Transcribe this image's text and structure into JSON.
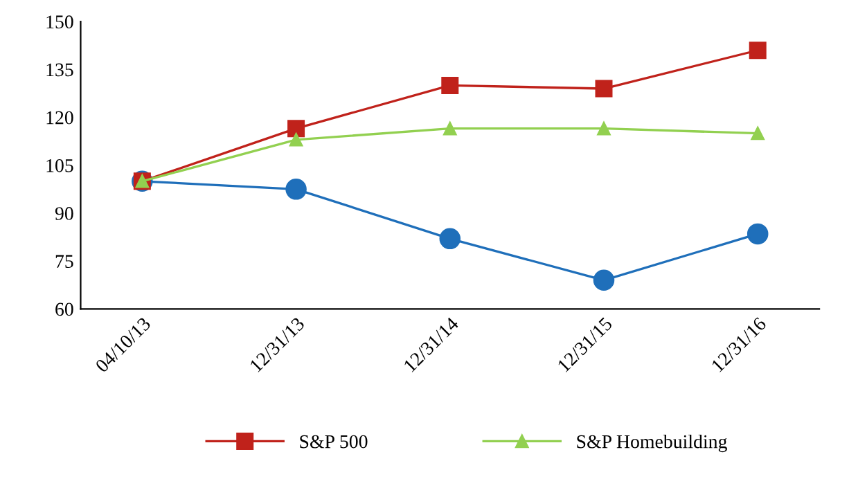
{
  "chart_data": {
    "type": "line",
    "categories": [
      "04/10/13",
      "12/31/13",
      "12/31/14",
      "12/31/15",
      "12/31/16"
    ],
    "series": [
      {
        "color": "#1f6fba",
        "marker": "circle",
        "values": [
          100,
          97.5,
          82,
          69,
          83.5
        ]
      },
      {
        "name": "S&P 500",
        "color": "#c0221b",
        "marker": "square",
        "values": [
          100,
          116.5,
          130,
          129,
          141
        ]
      },
      {
        "name": "S&P Homebuilding",
        "color": "#92d050",
        "marker": "triangle",
        "values": [
          100,
          113,
          116.5,
          116.5,
          115
        ]
      }
    ],
    "ylim": [
      60,
      150
    ],
    "yticks": [
      60,
      75,
      90,
      105,
      120,
      135,
      150
    ],
    "grid": false,
    "legend": "bottom"
  }
}
